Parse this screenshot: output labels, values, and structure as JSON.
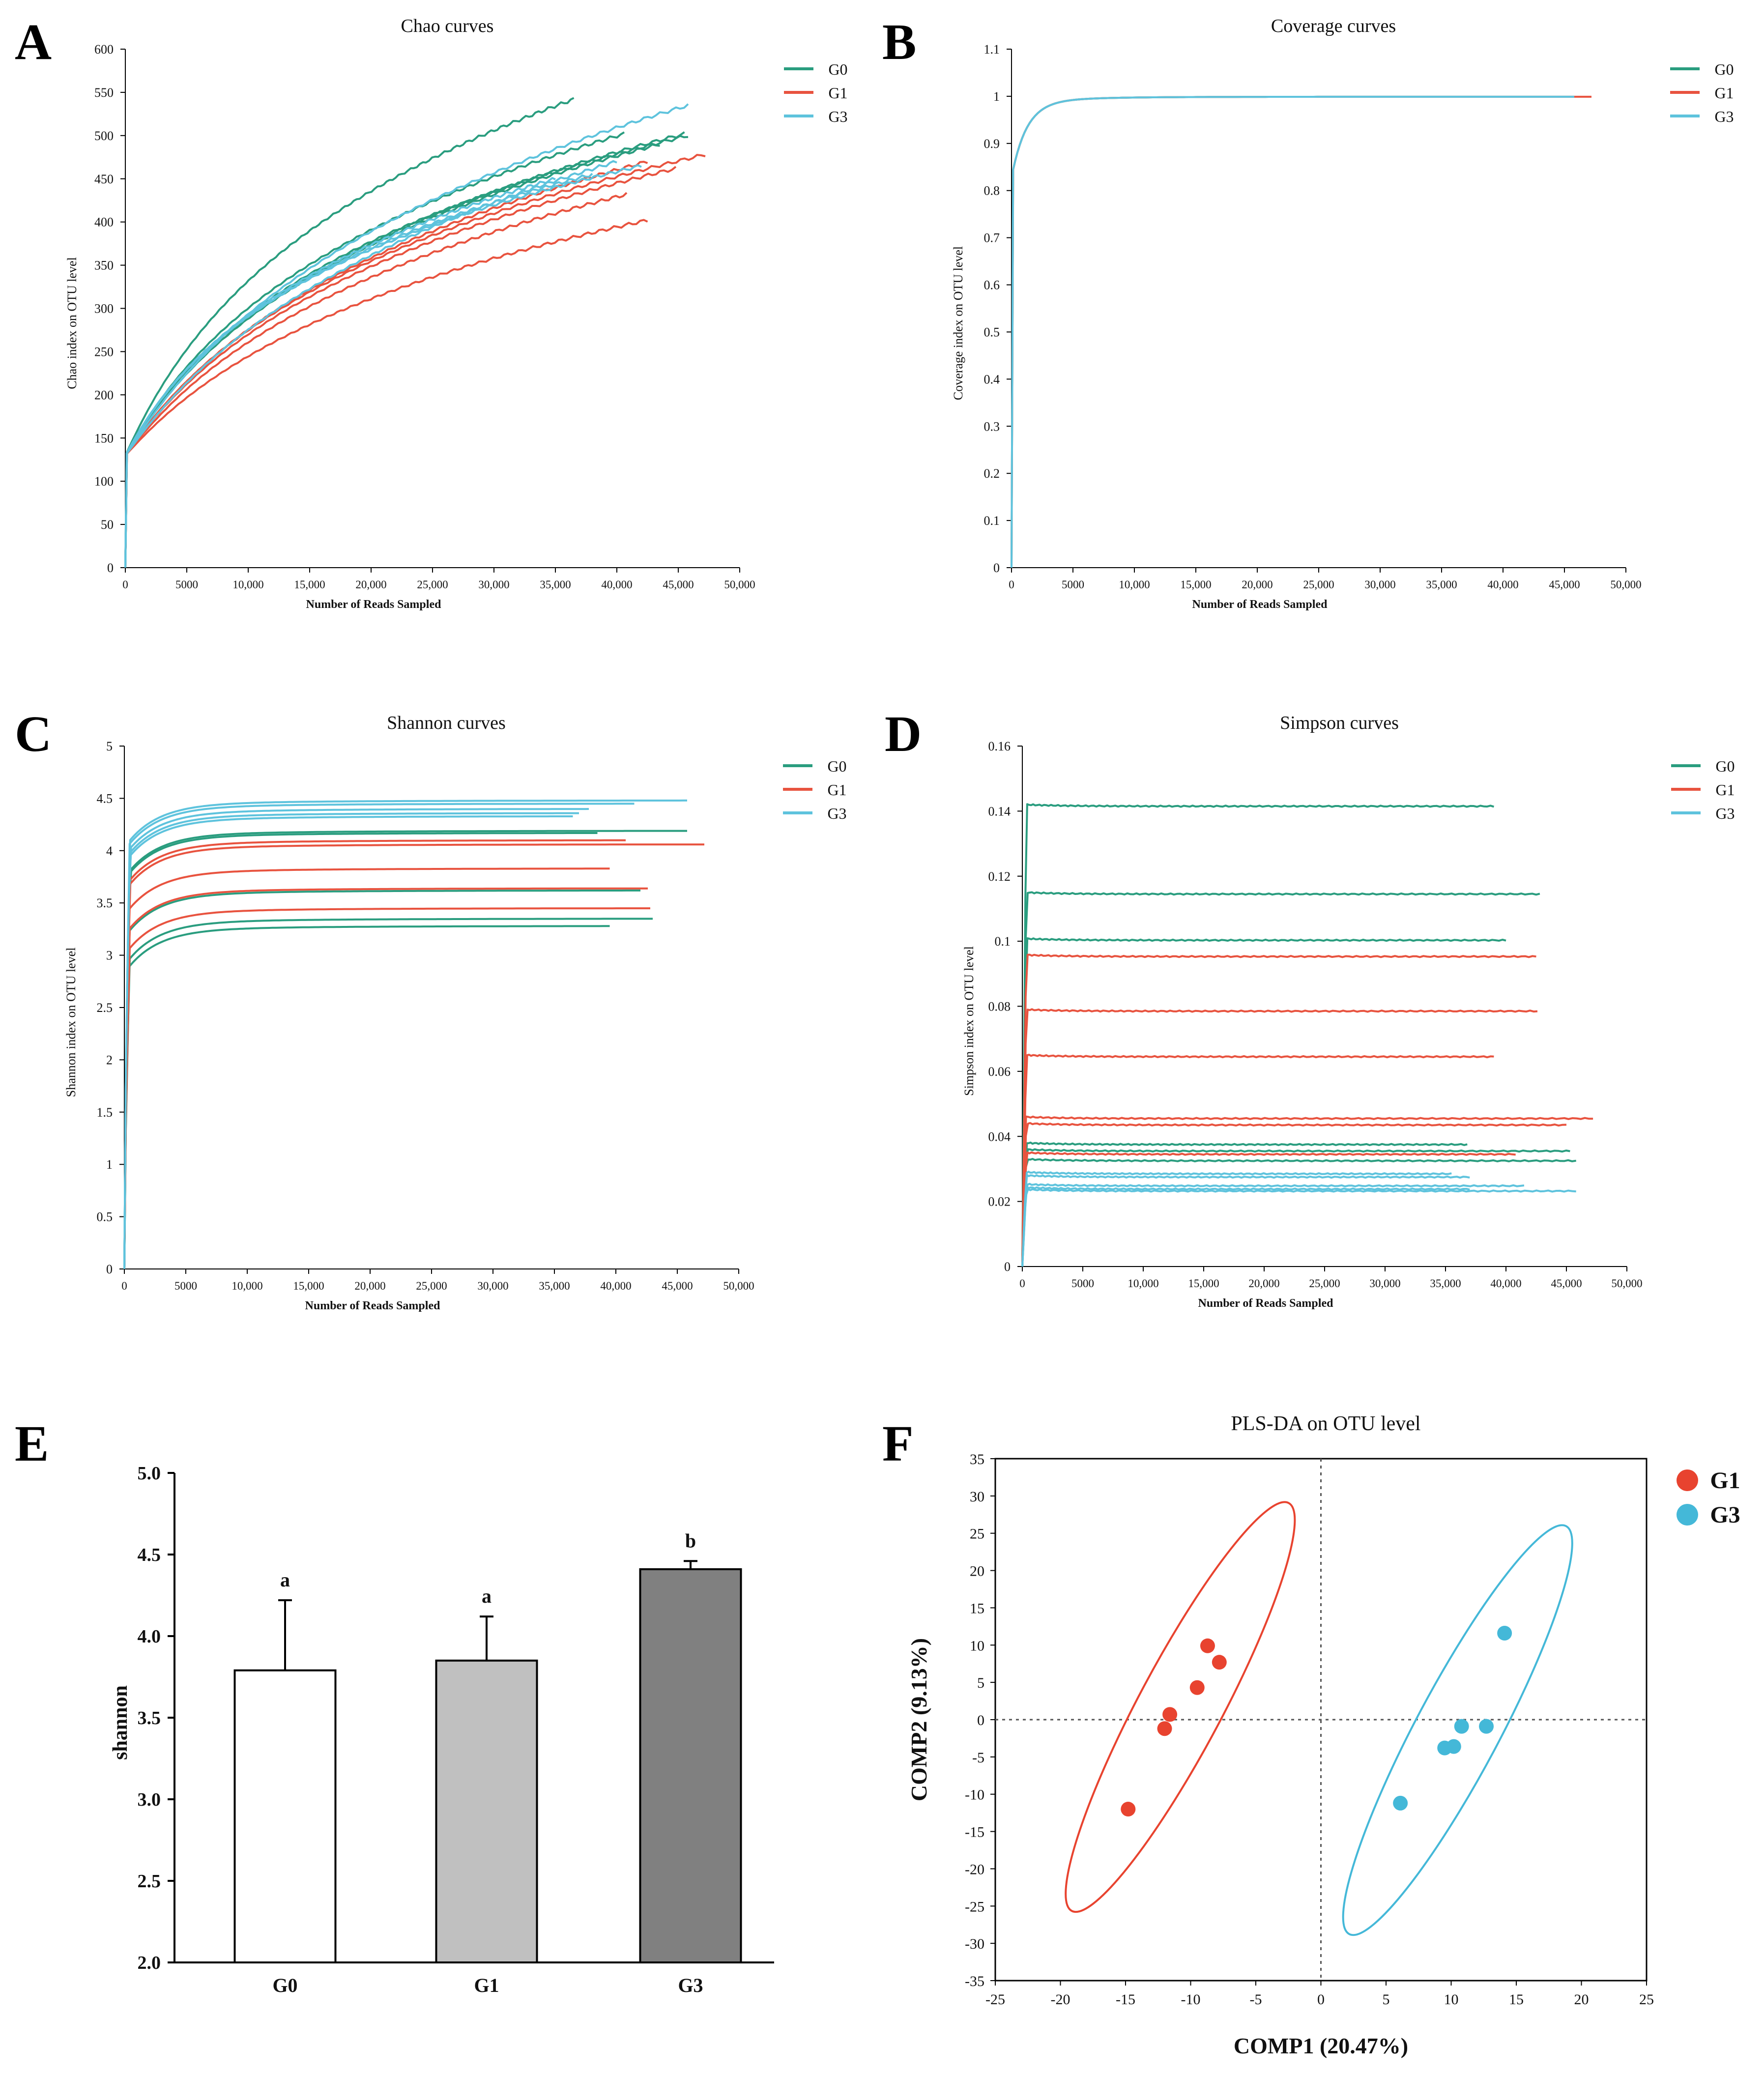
{
  "colors": {
    "G0": "#2a9d7f",
    "G1": "#e8533f",
    "G3": "#5ec3dd",
    "bar_G0": "#ffffff",
    "bar_G1": "#c0c0c0",
    "bar_G3": "#808080",
    "pls_G1": "#e8432f",
    "pls_G3": "#44b8d8"
  },
  "chart_data": [
    {
      "panel": "A",
      "type": "line",
      "title": "Chao curves",
      "xlabel": "Number  of Reads Sampled",
      "ylabel": "Chao index on OTU level",
      "xlim": [
        0,
        50000
      ],
      "ylim": [
        0,
        600
      ],
      "xticks": [
        "0",
        "5000",
        "10,000",
        "15,000",
        "20,000",
        "25,000",
        "30,000",
        "35,000",
        "40,000",
        "45,000",
        "50,000"
      ],
      "yticks": [
        "0",
        "50",
        "100",
        "150",
        "200",
        "250",
        "300",
        "350",
        "400",
        "450",
        "500",
        "550",
        "600"
      ],
      "legend": [
        "G0",
        "G1",
        "G3"
      ],
      "series": [
        {
          "group": "G0",
          "end_x": 36500,
          "end_y": 542
        },
        {
          "group": "G0",
          "end_x": 45800,
          "end_y": 500
        },
        {
          "group": "G0",
          "end_x": 40600,
          "end_y": 502
        },
        {
          "group": "G0",
          "end_x": 43500,
          "end_y": 490
        },
        {
          "group": "G0",
          "end_x": 45500,
          "end_y": 502
        },
        {
          "group": "G1",
          "end_x": 47200,
          "end_y": 478
        },
        {
          "group": "G1",
          "end_x": 44800,
          "end_y": 462
        },
        {
          "group": "G1",
          "end_x": 42500,
          "end_y": 470
        },
        {
          "group": "G1",
          "end_x": 40800,
          "end_y": 432
        },
        {
          "group": "G1",
          "end_x": 42500,
          "end_y": 402
        },
        {
          "group": "G3",
          "end_x": 45800,
          "end_y": 535
        },
        {
          "group": "G3",
          "end_x": 40000,
          "end_y": 470
        },
        {
          "group": "G3",
          "end_x": 42000,
          "end_y": 465
        },
        {
          "group": "G3",
          "end_x": 38000,
          "end_y": 455
        },
        {
          "group": "G3",
          "end_x": 35000,
          "end_y": 450
        }
      ]
    },
    {
      "panel": "B",
      "type": "line",
      "title": "Coverage curves",
      "xlabel": "Number  of Reads Sampled",
      "ylabel": "Coverage index on OTU level",
      "xlim": [
        0,
        50000
      ],
      "ylim": [
        0,
        1.1
      ],
      "xticks": [
        "0",
        "5000",
        "10,000",
        "15,000",
        "20,000",
        "25,000",
        "30,000",
        "35,000",
        "40,000",
        "45,000",
        "50,000"
      ],
      "yticks": [
        "0",
        "0.1",
        "0.2",
        "0.3",
        "0.4",
        "0.5",
        "0.6",
        "0.7",
        "0.8",
        "0.9",
        "1",
        "1.1"
      ],
      "legend": [
        "G0",
        "G1",
        "G3"
      ],
      "series": [
        {
          "group": "G0",
          "end_x": 45800,
          "end_y": 0.999
        },
        {
          "group": "G1",
          "end_x": 47200,
          "end_y": 0.999
        },
        {
          "group": "G3",
          "end_x": 45800,
          "end_y": 0.999
        }
      ]
    },
    {
      "panel": "C",
      "type": "line",
      "title": "Shannon curves",
      "xlabel": "Number  of Reads Sampled",
      "ylabel": "Shannon index on OTU level",
      "xlim": [
        0,
        50000
      ],
      "ylim": [
        0,
        5
      ],
      "xticks": [
        "0",
        "5000",
        "10,000",
        "15,000",
        "20,000",
        "25,000",
        "30,000",
        "35,000",
        "40,000",
        "45,000",
        "50,000"
      ],
      "yticks": [
        "0",
        "0.5",
        "1",
        "1.5",
        "2",
        "2.5",
        "3",
        "3.5",
        "4",
        "4.5",
        "5"
      ],
      "legend": [
        "G0",
        "G1",
        "G3"
      ],
      "series": [
        {
          "group": "G0",
          "end_x": 45800,
          "end_y": 4.19
        },
        {
          "group": "G0",
          "end_x": 38500,
          "end_y": 4.17
        },
        {
          "group": "G0",
          "end_x": 42000,
          "end_y": 3.62
        },
        {
          "group": "G0",
          "end_x": 43000,
          "end_y": 3.35
        },
        {
          "group": "G0",
          "end_x": 39500,
          "end_y": 3.28
        },
        {
          "group": "G1",
          "end_x": 47200,
          "end_y": 4.06
        },
        {
          "group": "G1",
          "end_x": 40800,
          "end_y": 4.1
        },
        {
          "group": "G1",
          "end_x": 39500,
          "end_y": 3.83
        },
        {
          "group": "G1",
          "end_x": 42600,
          "end_y": 3.64
        },
        {
          "group": "G1",
          "end_x": 42800,
          "end_y": 3.45
        },
        {
          "group": "G3",
          "end_x": 45800,
          "end_y": 4.48
        },
        {
          "group": "G3",
          "end_x": 41500,
          "end_y": 4.45
        },
        {
          "group": "G3",
          "end_x": 37800,
          "end_y": 4.4
        },
        {
          "group": "G3",
          "end_x": 37000,
          "end_y": 4.36
        },
        {
          "group": "G3",
          "end_x": 36500,
          "end_y": 4.33
        }
      ]
    },
    {
      "panel": "D",
      "type": "line",
      "title": "Simpson curves",
      "xlabel": "Number  of Reads Sampled",
      "ylabel": "Simpson index on OTU level",
      "xlim": [
        0,
        50000
      ],
      "ylim": [
        0,
        0.16
      ],
      "xticks": [
        "0",
        "5000",
        "10,000",
        "15,000",
        "20,000",
        "25,000",
        "30,000",
        "35,000",
        "40,000",
        "45,000",
        "50,000"
      ],
      "yticks": [
        "0",
        "0.02",
        "0.04",
        "0.06",
        "0.08",
        "0.1",
        "0.12",
        "0.14",
        "0.16"
      ],
      "legend": [
        "G0",
        "G1",
        "G3"
      ],
      "series": [
        {
          "group": "G0",
          "end_x": 39000,
          "end_y": 0.1415
        },
        {
          "group": "G0",
          "end_x": 42800,
          "end_y": 0.1145
        },
        {
          "group": "G0",
          "end_x": 40000,
          "end_y": 0.1003
        },
        {
          "group": "G0",
          "end_x": 36800,
          "end_y": 0.0375
        },
        {
          "group": "G0",
          "end_x": 45300,
          "end_y": 0.0355
        },
        {
          "group": "G0",
          "end_x": 45800,
          "end_y": 0.0325
        },
        {
          "group": "G1",
          "end_x": 42500,
          "end_y": 0.0953
        },
        {
          "group": "G1",
          "end_x": 42600,
          "end_y": 0.0785
        },
        {
          "group": "G1",
          "end_x": 39000,
          "end_y": 0.0645
        },
        {
          "group": "G1",
          "end_x": 47200,
          "end_y": 0.0455
        },
        {
          "group": "G1",
          "end_x": 45000,
          "end_y": 0.0435
        },
        {
          "group": "G1",
          "end_x": 40800,
          "end_y": 0.0345
        },
        {
          "group": "G3",
          "end_x": 45800,
          "end_y": 0.0232
        },
        {
          "group": "G3",
          "end_x": 41500,
          "end_y": 0.0248
        },
        {
          "group": "G3",
          "end_x": 37000,
          "end_y": 0.0275
        },
        {
          "group": "G3",
          "end_x": 35500,
          "end_y": 0.0285
        },
        {
          "group": "G3",
          "end_x": 37000,
          "end_y": 0.0238
        }
      ]
    },
    {
      "panel": "E",
      "type": "bar",
      "categories": [
        "G0",
        "G1",
        "G3"
      ],
      "values": [
        3.79,
        3.85,
        4.41
      ],
      "errors": [
        0.43,
        0.27,
        0.05
      ],
      "significance": [
        "a",
        "a",
        "b"
      ],
      "ylabel": "shannon",
      "ylim": [
        2.0,
        5.0
      ],
      "yticks": [
        "2.0",
        "2.5",
        "3.0",
        "3.5",
        "4.0",
        "4.5",
        "5.0"
      ]
    },
    {
      "panel": "F",
      "type": "scatter",
      "title": "PLS-DA on OTU level",
      "xlabel": "COMP1 (20.47%)",
      "ylabel": "COMP2 (9.13%)",
      "xlim": [
        -25,
        25
      ],
      "ylim": [
        -35,
        35
      ],
      "xticks": [
        "-25",
        "-20",
        "-15",
        "-10",
        "-5",
        "0",
        "5",
        "10",
        "15",
        "20",
        "25"
      ],
      "yticks": [
        "-35",
        "-30",
        "-25",
        "-20",
        "-15",
        "-10",
        "-5",
        "0",
        "5",
        "10",
        "15",
        "20",
        "25",
        "30",
        "35"
      ],
      "legend": [
        "G1",
        "G3"
      ],
      "series": [
        {
          "name": "G1",
          "points": [
            [
              -14.8,
              -12.0
            ],
            [
              -12.0,
              -1.2
            ],
            [
              -11.6,
              0.7
            ],
            [
              -9.5,
              4.3
            ],
            [
              -8.7,
              9.9
            ],
            [
              -7.8,
              7.7
            ]
          ]
        },
        {
          "name": "G3",
          "points": [
            [
              6.1,
              -11.2
            ],
            [
              9.5,
              -3.8
            ],
            [
              10.2,
              -3.6
            ],
            [
              10.8,
              -0.9
            ],
            [
              12.7,
              -0.9
            ],
            [
              14.1,
              11.6
            ]
          ]
        }
      ],
      "ellipses": [
        {
          "group": "G1",
          "center": [
            -10.8,
            1.7
          ],
          "x_extent": [
            -19.5,
            -2.1
          ],
          "y_extent": [
            -25.0,
            28.2
          ]
        },
        {
          "group": "G3",
          "center": [
            10.5,
            -1.4
          ],
          "x_extent": [
            1.5,
            19.5
          ],
          "y_extent": [
            -26.5,
            23.8
          ]
        }
      ]
    }
  ]
}
